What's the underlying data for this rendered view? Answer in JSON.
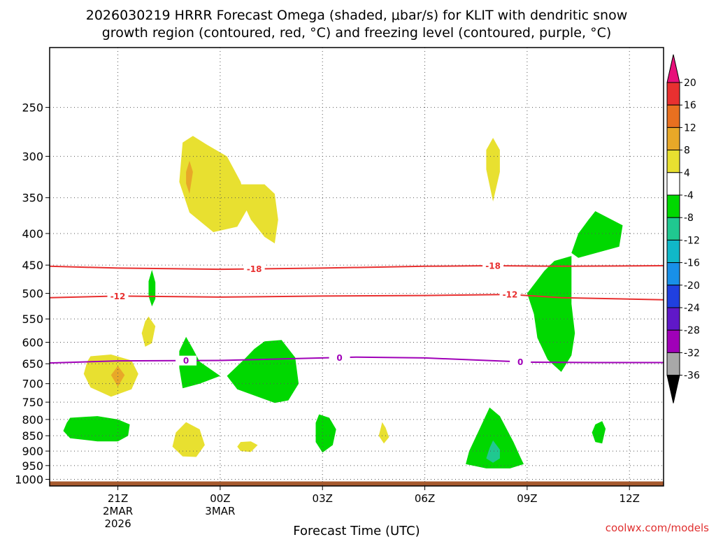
{
  "chart_data": {
    "type": "time-height cross section (contour)",
    "title_line1": "2026030219 HRRR Forecast Omega (shaded, μbar/s) for KLIT with dendritic snow",
    "title_line2": "growth region (contoured, red, °C) and freezing level (contoured, purple, °C)",
    "xlabel": "Forecast Time (UTC)",
    "credit": "coolwx.com/models",
    "x_ticks": [
      {
        "hour": 0,
        "label": "21Z",
        "sub1": "2MAR",
        "sub2": "2026"
      },
      {
        "hour": 3,
        "label": "00Z",
        "sub1": "3MAR",
        "sub2": ""
      },
      {
        "hour": 6,
        "label": "03Z",
        "sub1": "",
        "sub2": ""
      },
      {
        "hour": 9,
        "label": "06Z",
        "sub1": "",
        "sub2": ""
      },
      {
        "hour": 12,
        "label": "09Z",
        "sub1": "",
        "sub2": ""
      },
      {
        "hour": 15,
        "label": "12Z",
        "sub1": "",
        "sub2": ""
      }
    ],
    "x_range_hours": [
      -2,
      16
    ],
    "y_levels": [
      250,
      300,
      350,
      400,
      450,
      500,
      550,
      600,
      650,
      700,
      750,
      800,
      850,
      900,
      950,
      1000
    ],
    "y_range_hPa": [
      200,
      1025
    ],
    "y_scale": "log-pressure",
    "grid": true,
    "colorbar": {
      "levels": [
        20,
        16,
        12,
        8,
        4,
        -4,
        -8,
        -12,
        -16,
        -20,
        -24,
        -28,
        -32,
        -36
      ],
      "colors": [
        "#e8107a",
        "#e83030",
        "#e87020",
        "#e8a828",
        "#e8e030",
        "#ffffff",
        "#00d800",
        "#20c890",
        "#10b8c8",
        "#1890e8",
        "#2040e0",
        "#6018c8",
        "#a000b8",
        "#a8a8a8",
        "#000000"
      ]
    },
    "contours": [
      {
        "name": "-18",
        "color": "#e83030",
        "points": [
          [
            -2,
            452
          ],
          [
            0,
            455
          ],
          [
            3,
            457
          ],
          [
            6,
            455
          ],
          [
            9,
            452
          ],
          [
            11,
            451
          ],
          [
            13,
            452
          ],
          [
            16,
            451
          ]
        ],
        "label_x": [
          4,
          11
        ]
      },
      {
        "name": "-12",
        "color": "#e83030",
        "points": [
          [
            -2,
            508
          ],
          [
            0,
            505
          ],
          [
            3,
            507
          ],
          [
            6,
            505
          ],
          [
            9,
            504
          ],
          [
            11.5,
            502
          ],
          [
            13,
            508
          ],
          [
            16,
            512
          ]
        ],
        "label_x": [
          0,
          11.5
        ]
      },
      {
        "name": "0",
        "color": "#a000b8",
        "points": [
          [
            -2,
            648
          ],
          [
            0,
            643
          ],
          [
            3,
            642
          ],
          [
            6,
            636
          ],
          [
            7,
            634
          ],
          [
            9,
            636
          ],
          [
            12,
            646
          ],
          [
            14,
            647
          ],
          [
            16,
            647
          ]
        ],
        "label_x": [
          2,
          6.5,
          11.8
        ]
      }
    ],
    "shaded_regions": [
      {
        "value": 4,
        "points": [
          [
            1.9,
            285
          ],
          [
            2.2,
            278
          ],
          [
            2.6,
            287
          ],
          [
            3.2,
            300
          ],
          [
            3.6,
            330
          ],
          [
            3.8,
            365
          ],
          [
            3.5,
            390
          ],
          [
            2.8,
            398
          ],
          [
            2.1,
            370
          ],
          [
            1.8,
            330
          ]
        ]
      },
      {
        "value": 4,
        "points": [
          [
            3.5,
            333
          ],
          [
            4.3,
            333
          ],
          [
            4.6,
            345
          ],
          [
            4.7,
            380
          ],
          [
            4.6,
            415
          ],
          [
            4.3,
            405
          ],
          [
            3.9,
            380
          ],
          [
            3.6,
            350
          ]
        ]
      },
      {
        "value": 8,
        "points": [
          [
            2.0,
            318
          ],
          [
            2.1,
            305
          ],
          [
            2.2,
            318
          ],
          [
            2.1,
            345
          ],
          [
            2.0,
            332
          ]
        ]
      },
      {
        "value": 4,
        "points": [
          [
            11,
            280
          ],
          [
            11.2,
            293
          ],
          [
            11.2,
            318
          ],
          [
            11,
            355
          ],
          [
            10.8,
            315
          ],
          [
            10.8,
            293
          ]
        ]
      },
      {
        "value": 4,
        "points": [
          [
            -0.8,
            632
          ],
          [
            -0.2,
            628
          ],
          [
            0.4,
            642
          ],
          [
            0.6,
            675
          ],
          [
            0.4,
            715
          ],
          [
            -0.2,
            735
          ],
          [
            -0.8,
            710
          ],
          [
            -1.0,
            675
          ],
          [
            -0.9,
            645
          ]
        ]
      },
      {
        "value": 8,
        "points": [
          [
            0,
            655
          ],
          [
            0.2,
            678
          ],
          [
            0,
            708
          ],
          [
            -0.2,
            678
          ]
        ]
      },
      {
        "value": 4,
        "points": [
          [
            0.9,
            545
          ],
          [
            1.1,
            565
          ],
          [
            1.0,
            602
          ],
          [
            0.8,
            610
          ],
          [
            0.7,
            580
          ],
          [
            0.8,
            555
          ]
        ]
      },
      {
        "value": 4,
        "points": [
          [
            2.0,
            808
          ],
          [
            2.4,
            830
          ],
          [
            2.55,
            880
          ],
          [
            2.3,
            920
          ],
          [
            1.9,
            918
          ],
          [
            1.6,
            885
          ],
          [
            1.7,
            840
          ]
        ]
      },
      {
        "value": 4,
        "points": [
          [
            3.6,
            870
          ],
          [
            3.9,
            868
          ],
          [
            4.1,
            880
          ],
          [
            3.9,
            903
          ],
          [
            3.6,
            900
          ],
          [
            3.5,
            885
          ]
        ]
      },
      {
        "value": 4,
        "points": [
          [
            7.75,
            808
          ],
          [
            7.85,
            825
          ],
          [
            7.95,
            855
          ],
          [
            7.8,
            875
          ],
          [
            7.65,
            850
          ]
        ]
      },
      {
        "value": -4,
        "points": [
          [
            1.0,
            458
          ],
          [
            1.1,
            480
          ],
          [
            1.1,
            510
          ],
          [
            1.0,
            525
          ],
          [
            0.9,
            505
          ],
          [
            0.9,
            478
          ]
        ]
      },
      {
        "value": -4,
        "points": [
          [
            2.0,
            588
          ],
          [
            2.2,
            615
          ],
          [
            2.4,
            645
          ],
          [
            3.0,
            680
          ],
          [
            2.4,
            700
          ],
          [
            1.9,
            712
          ],
          [
            1.8,
            660
          ],
          [
            1.8,
            620
          ]
        ]
      },
      {
        "value": -4,
        "points": [
          [
            3.2,
            680
          ],
          [
            3.7,
            640
          ],
          [
            4.0,
            615
          ],
          [
            4.3,
            598
          ],
          [
            4.8,
            595
          ],
          [
            5.2,
            635
          ],
          [
            5.3,
            700
          ],
          [
            5.0,
            745
          ],
          [
            4.6,
            752
          ],
          [
            4.1,
            735
          ],
          [
            3.5,
            715
          ]
        ]
      },
      {
        "value": -4,
        "points": [
          [
            -1.4,
            795
          ],
          [
            -0.6,
            790
          ],
          [
            0,
            800
          ],
          [
            0.35,
            815
          ],
          [
            0.3,
            850
          ],
          [
            0,
            868
          ],
          [
            -0.6,
            868
          ],
          [
            -1.4,
            858
          ],
          [
            -1.6,
            835
          ],
          [
            -1.5,
            810
          ]
        ]
      },
      {
        "value": -4,
        "points": [
          [
            5.9,
            785
          ],
          [
            6.2,
            795
          ],
          [
            6.4,
            830
          ],
          [
            6.3,
            880
          ],
          [
            6.0,
            905
          ],
          [
            5.8,
            870
          ],
          [
            5.8,
            810
          ]
        ]
      },
      {
        "value": -4,
        "points": [
          [
            14.2,
            805
          ],
          [
            14.3,
            828
          ],
          [
            14.2,
            875
          ],
          [
            14.0,
            870
          ],
          [
            13.9,
            840
          ],
          [
            14.0,
            815
          ]
        ]
      },
      {
        "value": -4,
        "points": [
          [
            10.9,
            765
          ],
          [
            11.2,
            790
          ],
          [
            11.6,
            870
          ],
          [
            11.8,
            920
          ],
          [
            11.9,
            945
          ],
          [
            11.5,
            960
          ],
          [
            10.8,
            960
          ],
          [
            10.2,
            945
          ],
          [
            10.3,
            900
          ],
          [
            10.6,
            830
          ]
        ]
      },
      {
        "value": -8,
        "points": [
          [
            11.0,
            865
          ],
          [
            11.2,
            895
          ],
          [
            11.2,
            925
          ],
          [
            11.0,
            940
          ],
          [
            10.8,
            925
          ],
          [
            10.9,
            890
          ]
        ]
      },
      {
        "value": -4,
        "points": [
          [
            14.0,
            368
          ],
          [
            14.8,
            388
          ],
          [
            14.7,
            420
          ],
          [
            13.5,
            438
          ],
          [
            13.3,
            430
          ],
          [
            13.5,
            400
          ],
          [
            13.8,
            380
          ]
        ]
      },
      {
        "value": -4,
        "points": [
          [
            12.8,
            443
          ],
          [
            13.3,
            435
          ],
          [
            13.3,
            470
          ],
          [
            13.3,
            520
          ],
          [
            13.4,
            580
          ],
          [
            13.3,
            630
          ],
          [
            13.0,
            670
          ],
          [
            12.6,
            640
          ],
          [
            12.3,
            590
          ],
          [
            12.2,
            540
          ],
          [
            12.0,
            500
          ],
          [
            12.5,
            460
          ]
        ]
      }
    ],
    "terrain": {
      "color": "#a65a2e",
      "top_hPa": 1000
    }
  }
}
